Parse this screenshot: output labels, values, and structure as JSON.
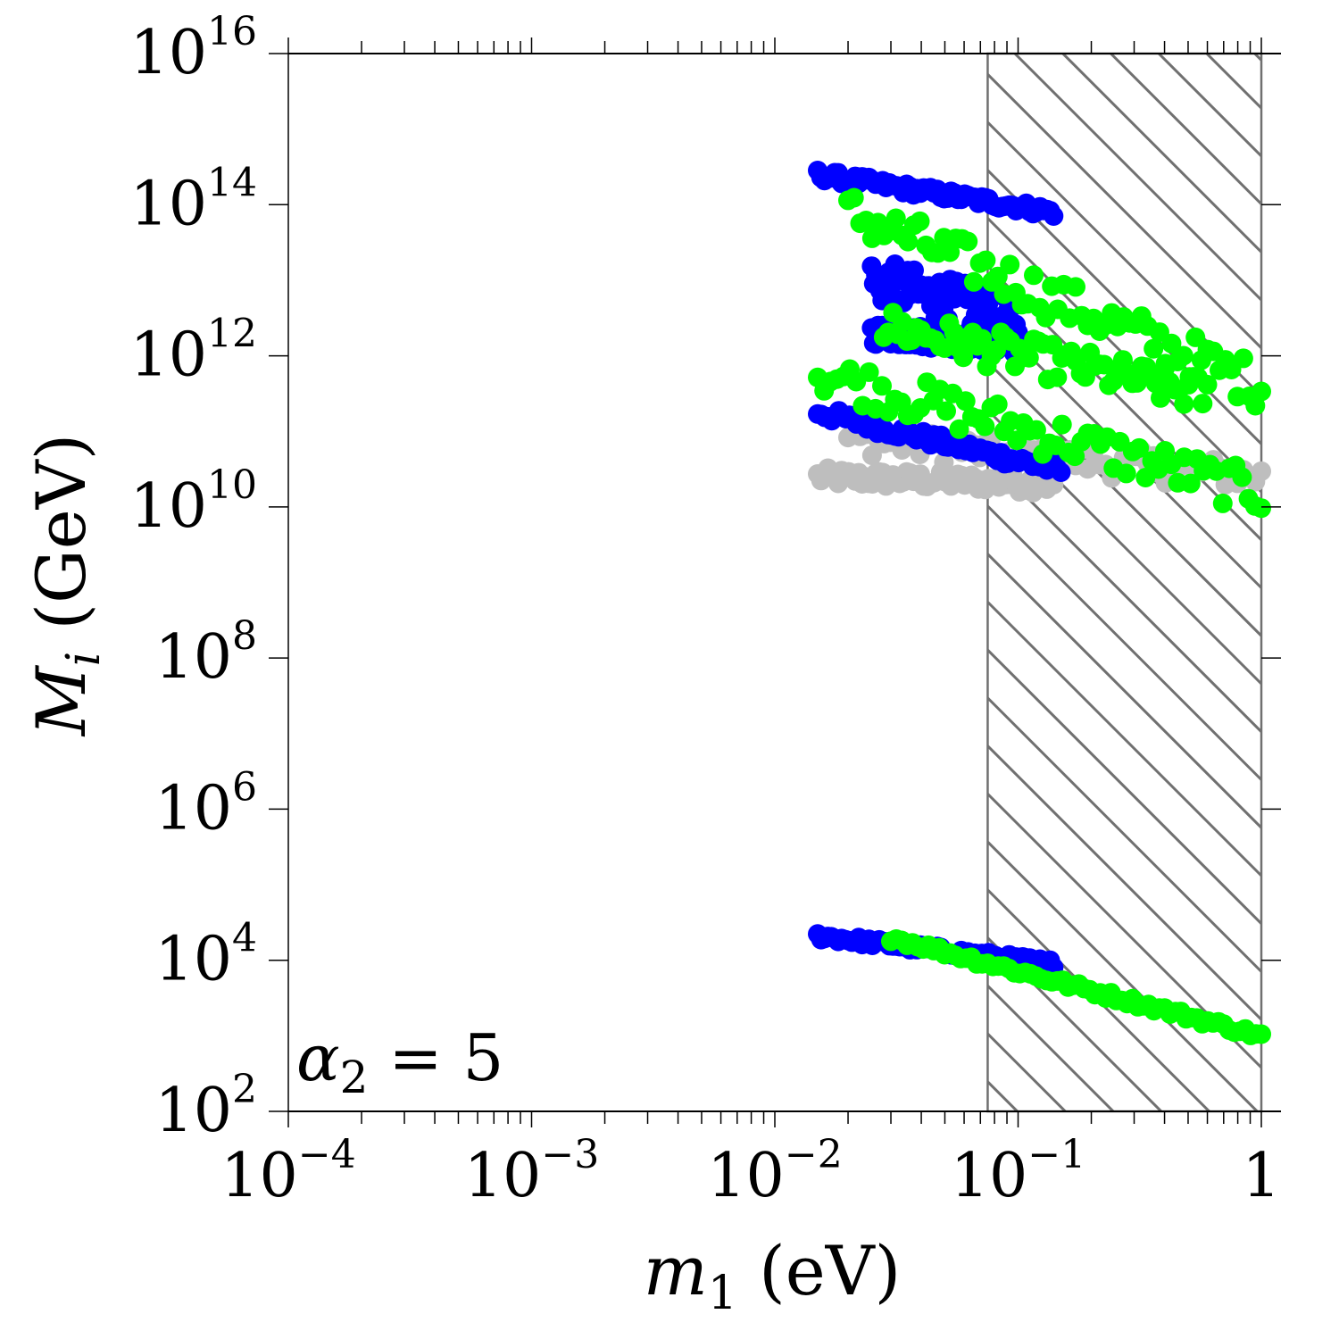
{
  "chart_data": {
    "type": "scatter",
    "title": "",
    "xlabel": {
      "symbol": "m",
      "subscript": "1",
      "unit": "(eV)"
    },
    "ylabel": {
      "symbol": "M",
      "subscript": "i",
      "unit": "(GeV)"
    },
    "x_scale": "log",
    "y_scale": "log",
    "xlim": [
      0.0001,
      1
    ],
    "ylim": [
      100,
      1e+16
    ],
    "x_ticks": [
      {
        "value": 0.0001,
        "base": "10",
        "exp": "−4"
      },
      {
        "value": 0.001,
        "base": "10",
        "exp": "−3"
      },
      {
        "value": 0.01,
        "base": "10",
        "exp": "−2"
      },
      {
        "value": 0.1,
        "base": "10",
        "exp": "−1"
      },
      {
        "value": 1,
        "base": "1",
        "exp": ""
      }
    ],
    "y_ticks": [
      {
        "value": 100,
        "base": "10",
        "exp": "2"
      },
      {
        "value": 10000,
        "base": "10",
        "exp": "4"
      },
      {
        "value": 1000000,
        "base": "10",
        "exp": "6"
      },
      {
        "value": 100000000,
        "base": "10",
        "exp": "8"
      },
      {
        "value": 10000000000,
        "base": "10",
        "exp": "10"
      },
      {
        "value": 1000000000000,
        "base": "10",
        "exp": "12"
      },
      {
        "value": 100000000000000,
        "base": "10",
        "exp": "14"
      },
      {
        "value": 10000000000000000,
        "base": "10",
        "exp": "16"
      }
    ],
    "annotation": {
      "symbol": "α",
      "subscript": "2",
      "rest": " = 5"
    },
    "excluded_region": {
      "x_from": 0.075,
      "x_to": 1,
      "style": "hatched",
      "color": "#707070"
    },
    "colors": {
      "blue": "#0000ff",
      "green": "#00ff00",
      "gray": "#bebebe"
    },
    "bands": [
      {
        "color": "gray",
        "x_from": 0.015,
        "x_to": 0.14,
        "y_start": 25000000000.0,
        "y_end": 20000000000.0,
        "spread_dex": 0.12
      },
      {
        "color": "gray",
        "x_from": 0.02,
        "x_to": 1.0,
        "y_start": 80000000000.0,
        "y_end": 25000000000.0,
        "spread_dex": 0.2
      },
      {
        "color": "blue",
        "x_from": 0.015,
        "x_to": 0.15,
        "y_start": 180000000000.0,
        "y_end": 30000000000.0,
        "spread_dex": 0.09
      },
      {
        "color": "blue",
        "x_from": 0.015,
        "x_to": 0.14,
        "y_start": 250000000000000.0,
        "y_end": 80000000000000.0,
        "spread_dex": 0.07
      },
      {
        "color": "blue",
        "x_from": 0.025,
        "x_to": 0.1,
        "y_start": 10000000000000.0,
        "y_end": 3000000000000.0,
        "spread_dex": 0.3
      },
      {
        "color": "blue",
        "x_from": 0.025,
        "x_to": 0.1,
        "y_start": 2000000000000.0,
        "y_end": 1500000000000.0,
        "spread_dex": 0.15
      },
      {
        "color": "green",
        "x_from": 0.02,
        "x_to": 1.0,
        "y_start": 80000000000000.0,
        "y_end": 400000000000.0,
        "spread_dex": 0.3
      },
      {
        "color": "green",
        "x_from": 0.015,
        "x_to": 1.0,
        "y_start": 600000000000.0,
        "y_end": 15000000000.0,
        "spread_dex": 0.28
      },
      {
        "color": "green",
        "x_from": 0.028,
        "x_to": 0.6,
        "y_start": 2500000000000.0,
        "y_end": 300000000000.0,
        "spread_dex": 0.25
      },
      {
        "color": "blue",
        "x_from": 0.015,
        "x_to": 0.14,
        "y_start": 21000.0,
        "y_end": 9000.0,
        "spread_dex": 0.05
      },
      {
        "color": "green",
        "x_from": 0.03,
        "x_to": 1.0,
        "y_start": 20000.0,
        "y_end": 1000.0,
        "spread_dex": 0.05
      }
    ]
  }
}
